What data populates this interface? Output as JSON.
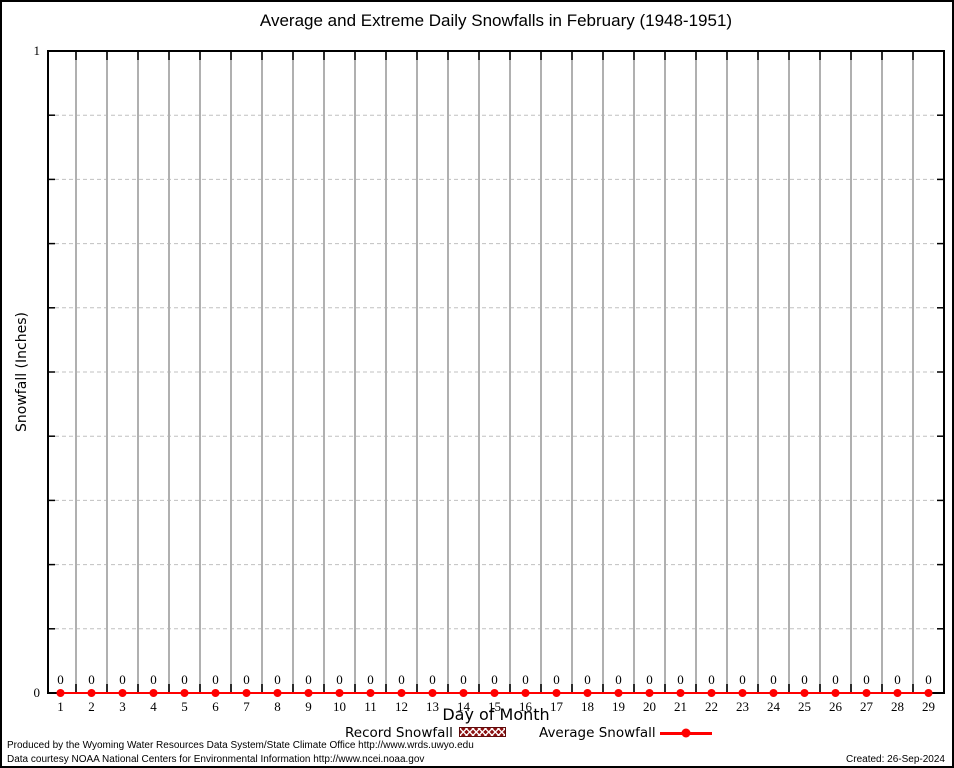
{
  "chart_data": {
    "type": "line",
    "title": "Average and Extreme Daily Snowfalls in February (1948-1951)",
    "xlabel": "Day of Month",
    "ylabel": "Snowfall (Inches)",
    "xlim": [
      0.6,
      29.5
    ],
    "ylim": [
      0,
      1
    ],
    "y_minor_tick_step": 0.1,
    "y_tick_labels": [
      {
        "value": 0,
        "label": "0"
      },
      {
        "value": 1,
        "label": "1"
      }
    ],
    "x": [
      1,
      2,
      3,
      4,
      5,
      6,
      7,
      8,
      9,
      10,
      11,
      12,
      13,
      14,
      15,
      16,
      17,
      18,
      19,
      20,
      21,
      22,
      23,
      24,
      25,
      26,
      27,
      28,
      29
    ],
    "series": [
      {
        "name": "Record Snowfall",
        "style": "hatched-box",
        "color": "#8b1212",
        "values": [
          0,
          0,
          0,
          0,
          0,
          0,
          0,
          0,
          0,
          0,
          0,
          0,
          0,
          0,
          0,
          0,
          0,
          0,
          0,
          0,
          0,
          0,
          0,
          0,
          0,
          0,
          0,
          0,
          0
        ]
      },
      {
        "name": "Average Snowfall",
        "style": "line-points",
        "color": "#ff0000",
        "values": [
          0,
          0,
          0,
          0,
          0,
          0,
          0,
          0,
          0,
          0,
          0,
          0,
          0,
          0,
          0,
          0,
          0,
          0,
          0,
          0,
          0,
          0,
          0,
          0,
          0,
          0,
          0,
          0,
          0
        ]
      }
    ],
    "point_labels": [
      "0",
      "0",
      "0",
      "0",
      "0",
      "0",
      "0",
      "0",
      "0",
      "0",
      "0",
      "0",
      "0",
      "0",
      "0",
      "0",
      "0",
      "0",
      "0",
      "0",
      "0",
      "0",
      "0",
      "0",
      "0",
      "0",
      "0",
      "0",
      "0"
    ],
    "grid": {
      "vertical": "solid gray lines between each day",
      "horizontal": "dashed gray lines every 0.1"
    },
    "legend_position": "bottom"
  },
  "legend": {
    "items": [
      {
        "label": "Record Snowfall",
        "swatch": "dark-red-hatched-box"
      },
      {
        "label": "Average Snowfall",
        "swatch": "red-line-with-point"
      }
    ]
  },
  "footer": {
    "line1": "Produced by the Wyoming Water Resources Data System/State Climate Office http://www.wrds.uwyo.edu",
    "line2": "Data courtesy NOAA National Centers for Environmental Information http://www.ncei.noaa.gov",
    "created": "Created: 26-Sep-2024"
  },
  "colors": {
    "average_line": "#ff0000",
    "record_swatch": "#8b1212",
    "grid_vertical": "#b0b0b0",
    "grid_horizontal": "#c0c0c0",
    "frame": "#000000"
  }
}
